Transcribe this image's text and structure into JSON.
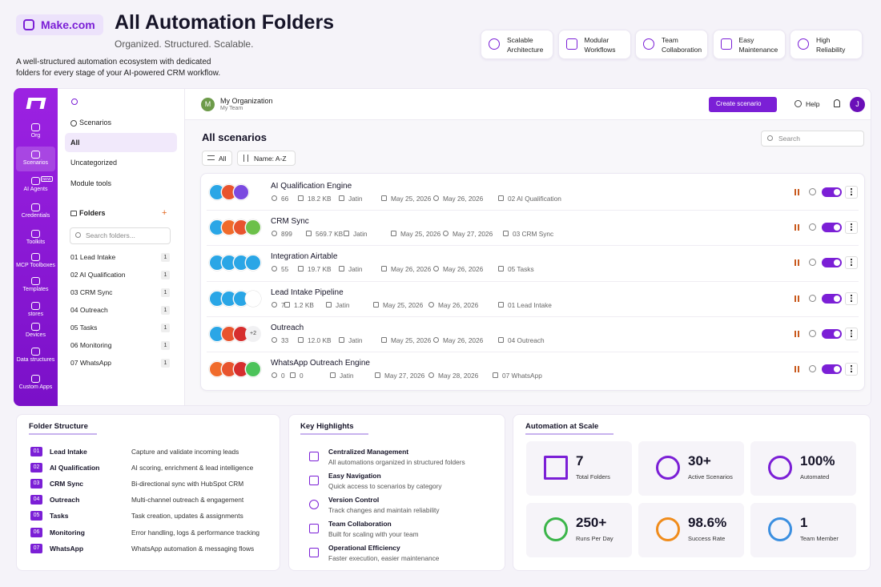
{
  "brand": "Make.com",
  "header": {
    "title": "All Automation Folders",
    "subtitle": "Organized. Structured. Scalable.",
    "description": "A well-structured automation ecosystem with dedicated folders for every stage of your AI-powered CRM workflow."
  },
  "features": [
    "Scalable Architecture",
    "Modular Workflows",
    "Team Collaboration",
    "Easy Maintenance",
    "High Reliability"
  ],
  "app": {
    "sidebar": [
      {
        "label": "Org"
      },
      {
        "label": "Scenarios"
      },
      {
        "label": "AI Agents",
        "badge": "NEW"
      },
      {
        "label": "Credentials"
      },
      {
        "label": "Toolkits"
      },
      {
        "label": "MCP Toolboxes"
      },
      {
        "label": "Templates"
      },
      {
        "label": "stores"
      },
      {
        "label": "Devices"
      },
      {
        "label": "Data structures"
      },
      {
        "label": "Custom Apps"
      }
    ],
    "nav": {
      "section": "Scenarios",
      "items": [
        "All",
        "Uncategorized",
        "Module tools"
      ],
      "folders_title": "Folders",
      "add": "+",
      "search": "Search folders...",
      "folders": [
        {
          "name": "01 Lead Intake",
          "count": 1
        },
        {
          "name": "02 AI Qualification",
          "count": 1
        },
        {
          "name": "03 CRM Sync",
          "count": 1
        },
        {
          "name": "04 Outreach",
          "count": 1
        },
        {
          "name": "05 Tasks",
          "count": 1
        },
        {
          "name": "06 Monitoring",
          "count": 1
        },
        {
          "name": "07 WhatsApp",
          "count": 1
        }
      ]
    },
    "topbar": {
      "org_initial": "M",
      "org": "My Organization",
      "team": "My Team",
      "create": "Create scenario",
      "help": "Help",
      "user_initial": "J"
    },
    "main": {
      "title": "All scenarios",
      "search": "Search",
      "filter": "All",
      "sort": "Name: A-Z",
      "scenarios": [
        {
          "name": "AI Qualification Engine",
          "runs": "66",
          "size": "18.2 KB",
          "user": "Jatin",
          "created": "May 25, 2026",
          "modified": "May 26, 2026",
          "folder": "02 AI Qualification"
        },
        {
          "name": "CRM Sync",
          "runs": "899",
          "size": "569.7 KB",
          "user": "Jatin",
          "created": "May 25, 2026",
          "modified": "May 27, 2026",
          "folder": "03 CRM Sync"
        },
        {
          "name": "Integration Airtable",
          "runs": "55",
          "size": "19.7 KB",
          "user": "Jatin",
          "created": "May 26, 2026",
          "modified": "May 26, 2026",
          "folder": "05 Tasks"
        },
        {
          "name": "Lead Intake Pipeline",
          "runs": "7",
          "size": "1.2 KB",
          "user": "Jatin",
          "created": "May 25, 2026",
          "modified": "May 26, 2026",
          "folder": "01 Lead Intake"
        },
        {
          "name": "Outreach",
          "more": "+2",
          "runs": "33",
          "size": "12.0 KB",
          "user": "Jatin",
          "created": "May 25, 2026",
          "modified": "May 26, 2026",
          "folder": "04 Outreach"
        },
        {
          "name": "WhatsApp Outreach Engine",
          "runs": "0",
          "size": "0",
          "user": "Jatin",
          "created": "May 27, 2026",
          "modified": "May 28, 2026",
          "folder": "07 WhatsApp"
        }
      ]
    }
  },
  "folder_structure": {
    "title": "Folder Structure",
    "rows": [
      {
        "num": "01",
        "name": "Lead Intake",
        "desc": "Capture and validate incoming leads"
      },
      {
        "num": "02",
        "name": "AI Qualification",
        "desc": "AI scoring, enrichment & lead intelligence"
      },
      {
        "num": "03",
        "name": "CRM Sync",
        "desc": "Bi-directional sync with HubSpot CRM"
      },
      {
        "num": "04",
        "name": "Outreach",
        "desc": "Multi-channel outreach & engagement"
      },
      {
        "num": "05",
        "name": "Tasks",
        "desc": "Task creation, updates & assignments"
      },
      {
        "num": "06",
        "name": "Monitoring",
        "desc": "Error handling, logs & performance tracking"
      },
      {
        "num": "07",
        "name": "WhatsApp",
        "desc": "WhatsApp automation & messaging flows"
      }
    ]
  },
  "highlights": {
    "title": "Key Highlights",
    "items": [
      {
        "title": "Centralized Management",
        "desc": "All automations organized in structured folders"
      },
      {
        "title": "Easy Navigation",
        "desc": "Quick access to scenarios by category"
      },
      {
        "title": "Version Control",
        "desc": "Track changes and maintain reliability"
      },
      {
        "title": "Team Collaboration",
        "desc": "Built for scaling with your team"
      },
      {
        "title": "Operational Efficiency",
        "desc": "Faster execution, easier maintenance"
      }
    ]
  },
  "scale": {
    "title": "Automation at Scale",
    "stats": [
      {
        "value": "7",
        "label": "Total Folders"
      },
      {
        "value": "30+",
        "label": "Active Scenarios"
      },
      {
        "value": "100%",
        "label": "Automated"
      },
      {
        "value": "250+",
        "label": "Runs Per Day"
      },
      {
        "value": "98.6%",
        "label": "Success Rate"
      },
      {
        "value": "1",
        "label": "Team Member"
      }
    ]
  }
}
